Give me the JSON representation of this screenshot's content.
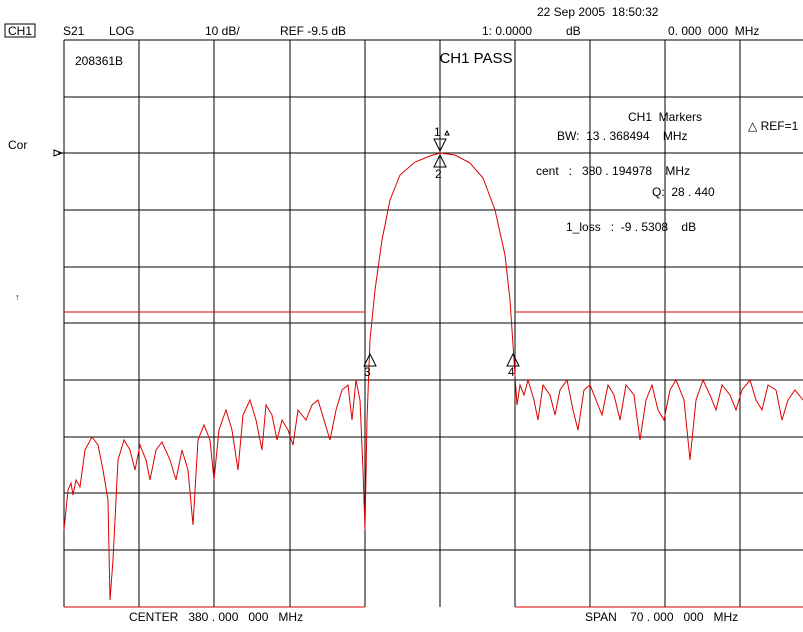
{
  "status": {
    "channel": "CH1",
    "param": "S21",
    "format": "LOG",
    "scale": "10 dB/",
    "ref": "REF -9.5 dB",
    "marker_value": "1: 0.0000",
    "marker_unit": "dB",
    "marker_freq": "0. 000  000  MHz",
    "datetime": "22 Sep 2005  18:50:32"
  },
  "screen": {
    "id": "208361B",
    "result": "CH1 PASS",
    "cor": "Cor",
    "arrow": "↑"
  },
  "markers": {
    "title": "CH1  Markers",
    "bw": "BW:  13 . 368494    MHz",
    "ref": "△ REF=1",
    "cent": "cent   :   380 . 194978    MHz",
    "q": "Q:  28 . 440",
    "loss": "1_loss   :  -9 . 5308    dB",
    "labels": [
      "1",
      "2",
      "3",
      "4"
    ]
  },
  "footer": {
    "center": "CENTER   380 . 000   000   MHz",
    "span": "SPAN    70 . 000   000   MHz"
  }
}
